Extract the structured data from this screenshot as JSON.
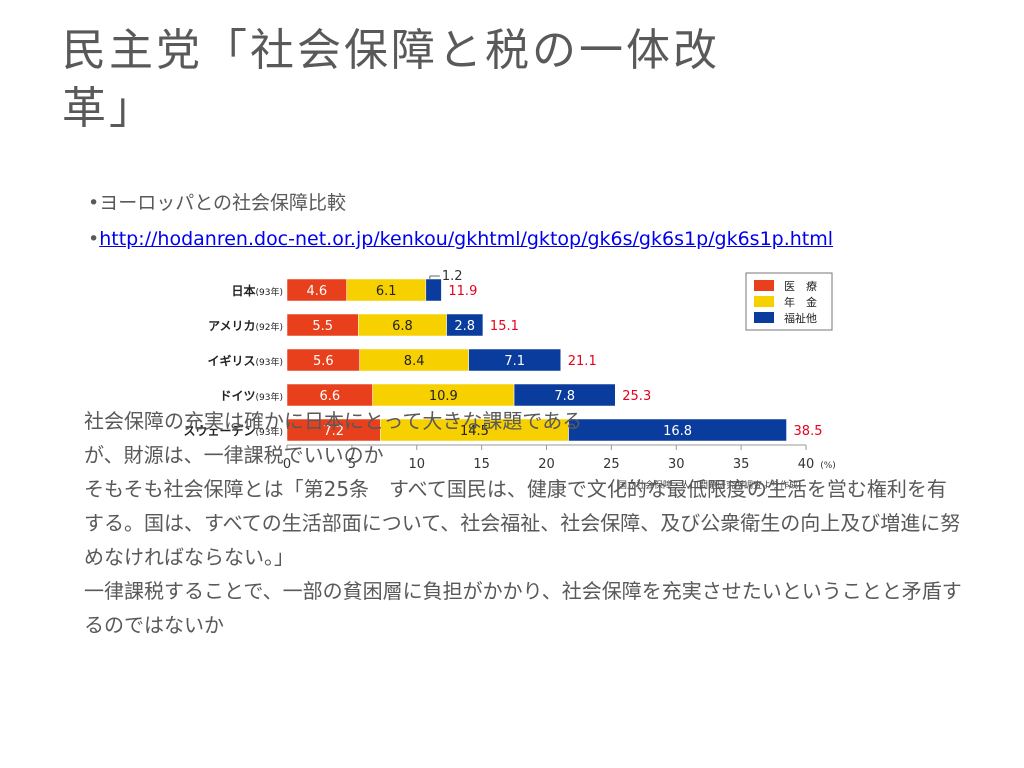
{
  "slide": {
    "title_line1": "民主党「社会保障と税の一体改",
    "title_line2": "革」",
    "bullet1": "ヨーロッパとの社会保障比較",
    "bullet2": "http://hodanren.doc-net.or.jp/kenkou/gkhtml/gktop/gk6s/gk6s1p/gk6s1p.html",
    "bullet_char": "•",
    "body_line1": "社会保障の充実は確かに日本にとって大きな課題である",
    "body_line2": "が、財源は、一律課税でいいのか",
    "body_para2": " そもそも社会保障とは「第25条　すべて国民は、健康で文化的な最低限度の生活を営む権利を有する。国は、すべての生活部面について、社会福祉、社会保障、及び公衆衛生の向上及び増進に努めなければならない。」",
    "body_para3": " 一律課税することで、一部の貧困層に負担がかかり、社会保障を充実させたいということと矛盾するのではないか"
  },
  "chart_data": {
    "type": "bar",
    "stacked": true,
    "orientation": "horizontal",
    "categories": [
      "日本",
      "アメリカ",
      "イギリス",
      "ドイツ",
      "スウェーデン"
    ],
    "years": [
      "(93年)",
      "(92年)",
      "(93年)",
      "(93年)",
      "(93年)"
    ],
    "series": [
      {
        "name": "医　療",
        "color": "#e8401c",
        "values": [
          4.6,
          5.5,
          5.6,
          6.6,
          7.2
        ]
      },
      {
        "name": "年　金",
        "color": "#f7d000",
        "values": [
          6.1,
          6.8,
          8.4,
          10.9,
          14.5
        ]
      },
      {
        "name": "福祉他",
        "color": "#0a3c9e",
        "values": [
          1.2,
          2.8,
          7.1,
          7.8,
          16.8
        ]
      }
    ],
    "totals": [
      11.9,
      15.1,
      21.1,
      25.3,
      38.5
    ],
    "total_color": "#e8001c",
    "xlim": [
      0,
      40
    ],
    "xticks": [
      0,
      5,
      10,
      15,
      20,
      25,
      30,
      35,
      40
    ],
    "x_unit": "(%)",
    "legend_position": "top-right",
    "source": "国立社会保障・人口問題研究所調査より作成"
  }
}
